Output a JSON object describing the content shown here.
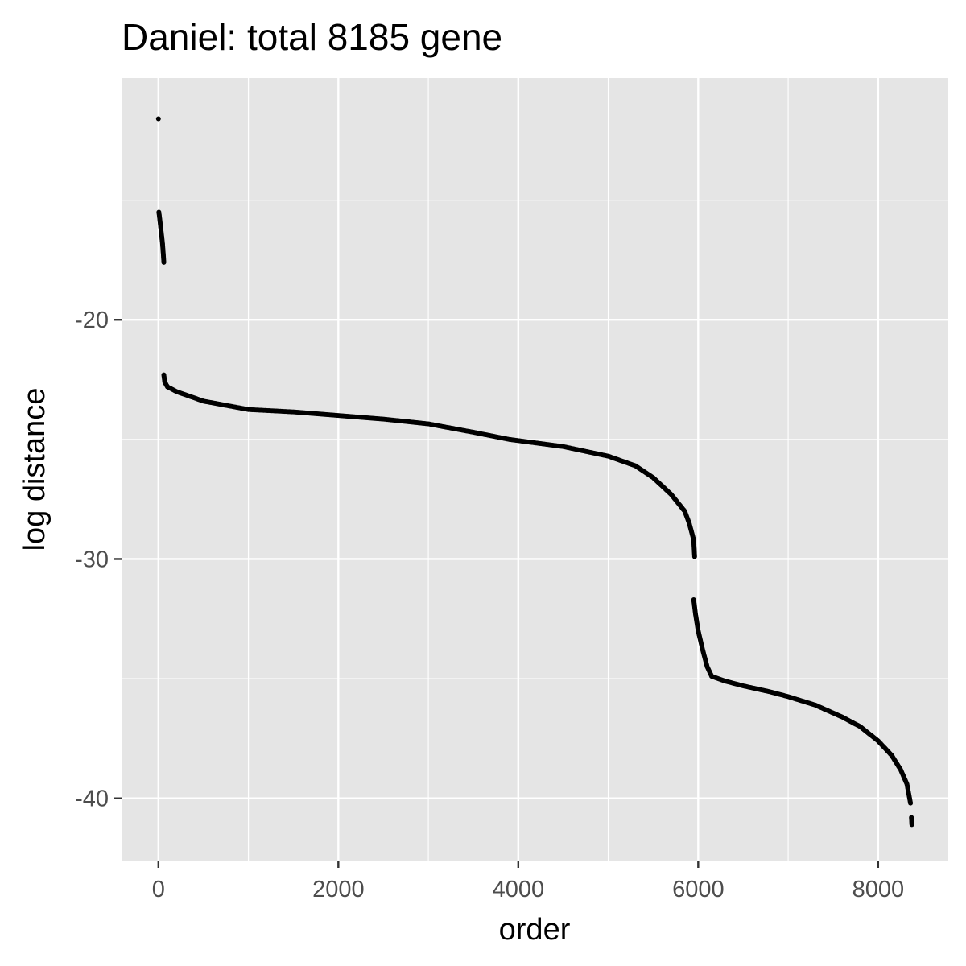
{
  "chart_data": {
    "type": "scatter",
    "title": "Daniel: total 8185 gene",
    "xlabel": "order",
    "ylabel": "log distance",
    "xlim": [
      -410,
      8780
    ],
    "ylim": [
      -42.6,
      -9.9
    ],
    "x_ticks": [
      0,
      2000,
      4000,
      6000,
      8000
    ],
    "y_ticks": [
      -20,
      -30,
      -40
    ],
    "x_tick_labels": [
      "0",
      "2000",
      "4000",
      "6000",
      "8000"
    ],
    "y_tick_labels": [
      "-20",
      "-30",
      "-40"
    ],
    "grid": true,
    "legend": "none",
    "point_color": "#000000",
    "panel_background": "#e5e5e5",
    "grid_color": "#ffffff",
    "series": [
      {
        "segments": [
          [
            [
              0,
              -11.6
            ]
          ],
          [
            [
              5,
              -15.5
            ],
            [
              15,
              -15.8
            ],
            [
              30,
              -16.3
            ],
            [
              45,
              -16.8
            ],
            [
              55,
              -17.3
            ],
            [
              60,
              -17.6
            ]
          ],
          [
            [
              60,
              -22.3
            ],
            [
              70,
              -22.6
            ],
            [
              100,
              -22.8
            ],
            [
              200,
              -23.0
            ],
            [
              500,
              -23.4
            ],
            [
              1000,
              -23.75
            ],
            [
              1500,
              -23.85
            ],
            [
              2000,
              -24.0
            ],
            [
              2500,
              -24.15
            ],
            [
              3000,
              -24.35
            ],
            [
              3500,
              -24.7
            ],
            [
              3900,
              -25.0
            ],
            [
              4000,
              -25.05
            ],
            [
              4500,
              -25.3
            ],
            [
              5000,
              -25.7
            ],
            [
              5300,
              -26.1
            ],
            [
              5500,
              -26.6
            ],
            [
              5700,
              -27.3
            ],
            [
              5850,
              -28.0
            ],
            [
              5900,
              -28.5
            ],
            [
              5950,
              -29.2
            ],
            [
              5960,
              -29.9
            ]
          ],
          [
            [
              5950,
              -31.7
            ],
            [
              5970,
              -32.3
            ],
            [
              6000,
              -33.0
            ],
            [
              6050,
              -33.8
            ],
            [
              6100,
              -34.5
            ],
            [
              6150,
              -34.9
            ],
            [
              6300,
              -35.1
            ],
            [
              6500,
              -35.3
            ],
            [
              6800,
              -35.55
            ],
            [
              7000,
              -35.75
            ],
            [
              7300,
              -36.1
            ],
            [
              7600,
              -36.6
            ],
            [
              7800,
              -37.0
            ],
            [
              8000,
              -37.6
            ],
            [
              8150,
              -38.2
            ],
            [
              8250,
              -38.8
            ],
            [
              8320,
              -39.4
            ],
            [
              8360,
              -40.2
            ]
          ],
          [
            [
              8370,
              -40.8
            ],
            [
              8375,
              -41.1
            ]
          ]
        ]
      }
    ]
  }
}
